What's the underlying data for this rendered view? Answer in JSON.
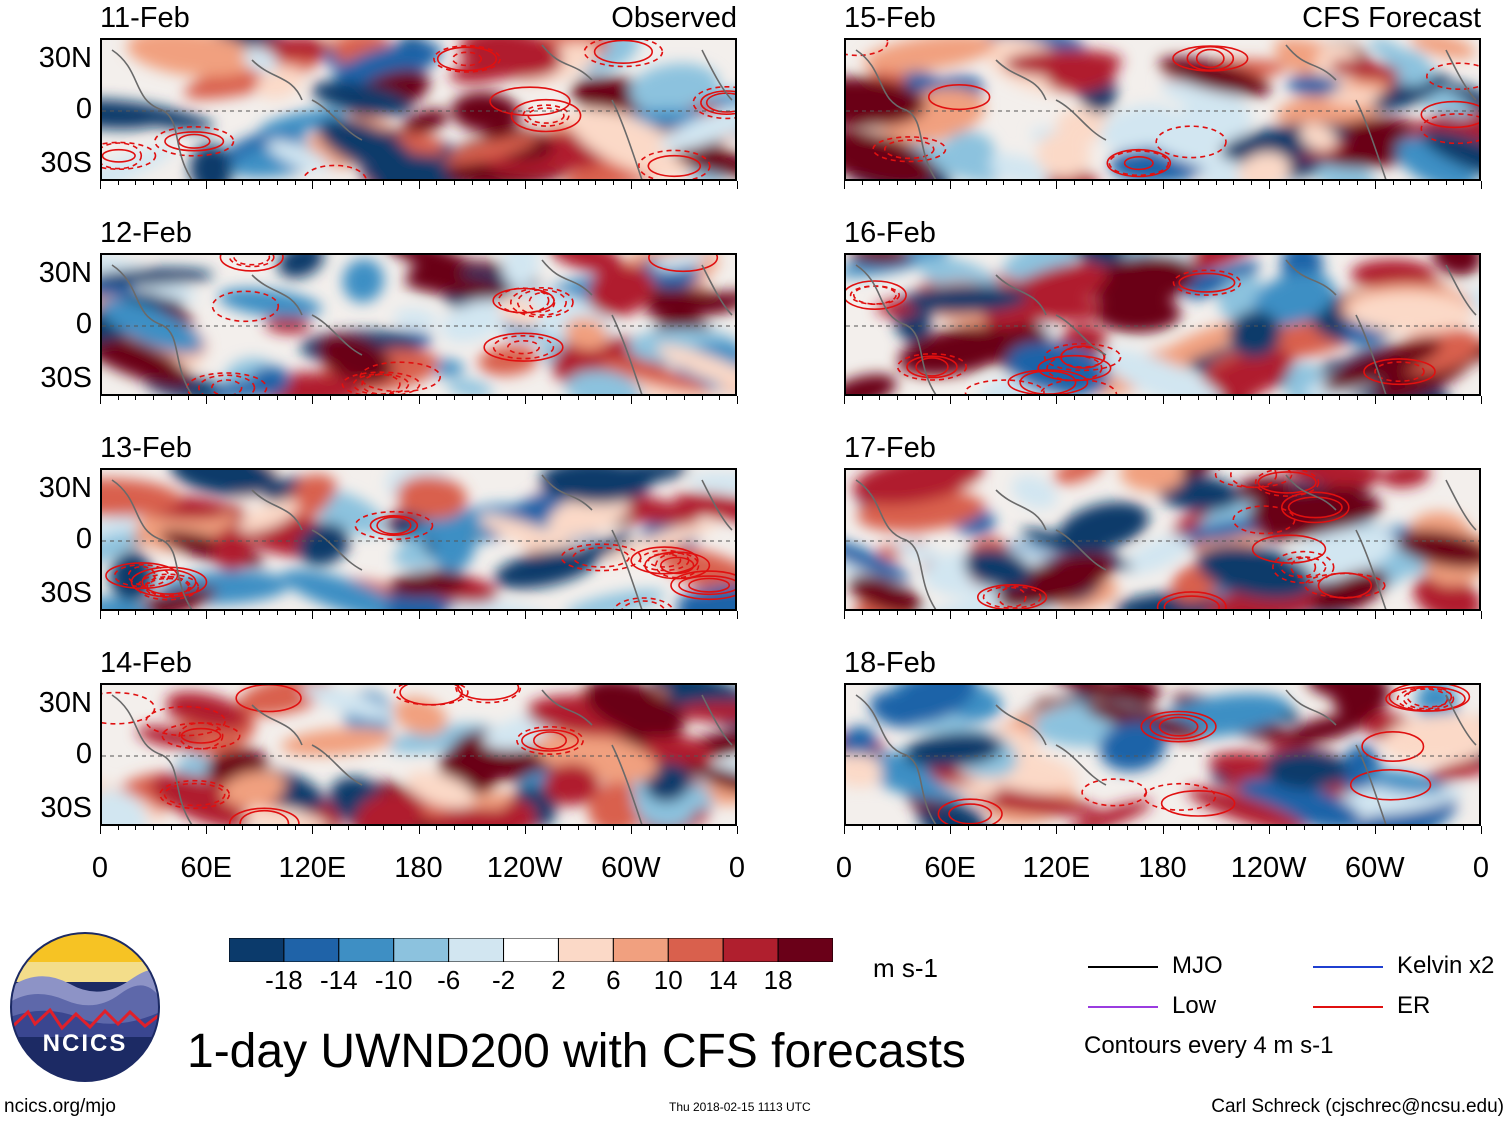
{
  "title": "1-day UWND200 with CFS forecasts",
  "website": "ncics.org/mjo",
  "timestamp": "Thu 2018-02-15 1113 UTC",
  "author": "Carl Schreck (cjschrec@ncsu.edu)",
  "logo_text": "NCICS",
  "units": "m s-1",
  "contour_note": "Contours every 4 m s-1",
  "legend": [
    {
      "label": "MJO",
      "color": "#000000"
    },
    {
      "label": "Kelvin x2",
      "color": "#1f3fd0"
    },
    {
      "label": "Low",
      "color": "#9a3ce0"
    },
    {
      "label": "ER",
      "color": "#e01010"
    }
  ],
  "colorbar": {
    "colors": [
      "#0b3a6b",
      "#1f63a8",
      "#3e8fc4",
      "#8cc2de",
      "#d2e6f1",
      "#ffffff",
      "#fbd9c7",
      "#f1a07f",
      "#d9604d",
      "#b01f2e",
      "#6a0018"
    ],
    "labels": [
      "-18",
      "-14",
      "-10",
      "-6",
      "-2",
      "2",
      "6",
      "10",
      "14",
      "18"
    ]
  },
  "chart_data": {
    "type": "heatmap",
    "variable": "UWND200",
    "columns": [
      {
        "tag": "Observed",
        "dates": [
          "11-Feb",
          "12-Feb",
          "13-Feb",
          "14-Feb"
        ]
      },
      {
        "tag": "CFS Forecast",
        "dates": [
          "15-Feb",
          "16-Feb",
          "17-Feb",
          "18-Feb"
        ]
      }
    ],
    "lat_ticks": [
      "30N",
      "0",
      "30S"
    ],
    "lon_ticks": [
      "0",
      "60E",
      "120E",
      "180",
      "120W",
      "60W",
      "0"
    ],
    "lon_range": [
      0,
      360
    ],
    "lat_range": [
      -40,
      40
    ],
    "color_levels": [
      -18,
      -14,
      -10,
      -6,
      -2,
      2,
      6,
      10,
      14,
      18
    ]
  }
}
